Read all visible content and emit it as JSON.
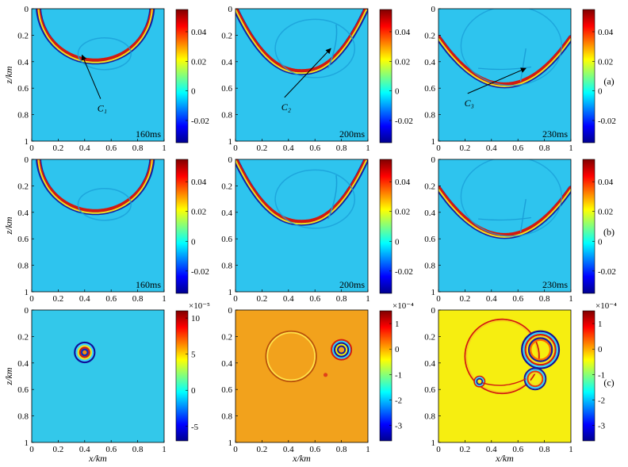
{
  "chart_data": {
    "type": "heatmap",
    "axes": {
      "xlabel": "x/km",
      "ylabel": "z/km",
      "xticks": [
        "0",
        "0.2",
        "0.4",
        "0.6",
        "0.8",
        "1"
      ],
      "zticks": [
        "0",
        "0.2",
        "0.4",
        "0.6",
        "0.8",
        "1"
      ],
      "xlim": [
        0,
        1
      ],
      "zlim": [
        0,
        1
      ]
    },
    "rows": [
      {
        "label": "(a)",
        "panels": [
          {
            "time": "160ms",
            "annotation": "C₁",
            "arrow_tip": [
              0.38,
              0.35
            ],
            "colorbar": {
              "exponent": "",
              "ticks": [
                "0.04",
                "0.02",
                "0",
                "-0.02"
              ],
              "values": [
                0.04,
                0.02,
                0,
                -0.02
              ],
              "range": [
                -0.035,
                0.055
              ]
            }
          },
          {
            "time": "200ms",
            "annotation": "C₂",
            "arrow_tip": [
              0.72,
              0.3
            ],
            "colorbar": {
              "exponent": "",
              "ticks": [
                "0.04",
                "0.02",
                "0",
                "-0.02"
              ],
              "values": [
                0.04,
                0.02,
                0,
                -0.02
              ],
              "range": [
                -0.035,
                0.055
              ]
            }
          },
          {
            "time": "230ms",
            "annotation": "C₃",
            "arrow_tip": [
              0.66,
              0.45
            ],
            "colorbar": {
              "exponent": "",
              "ticks": [
                "0.04",
                "0.02",
                "0",
                "-0.02"
              ],
              "values": [
                0.04,
                0.02,
                0,
                -0.02
              ],
              "range": [
                -0.035,
                0.055
              ]
            }
          }
        ]
      },
      {
        "label": "(b)",
        "panels": [
          {
            "time": "160ms",
            "colorbar": {
              "exponent": "",
              "ticks": [
                "0.04",
                "0.02",
                "0",
                "-0.02"
              ],
              "values": [
                0.04,
                0.02,
                0,
                -0.02
              ],
              "range": [
                -0.035,
                0.055
              ]
            }
          },
          {
            "time": "200ms",
            "colorbar": {
              "exponent": "",
              "ticks": [
                "0.04",
                "0.02",
                "0",
                "-0.02"
              ],
              "values": [
                0.04,
                0.02,
                0,
                -0.02
              ],
              "range": [
                -0.035,
                0.055
              ]
            }
          },
          {
            "time": "230ms",
            "colorbar": {
              "exponent": "",
              "ticks": [
                "0.04",
                "0.02",
                "0",
                "-0.02"
              ],
              "values": [
                0.04,
                0.02,
                0,
                -0.02
              ],
              "range": [
                -0.035,
                0.055
              ]
            }
          }
        ]
      },
      {
        "label": "(c)",
        "panels": [
          {
            "time": "",
            "colorbar": {
              "exponent": "×10⁻⁵",
              "ticks": [
                "10",
                "5",
                "0",
                "-5"
              ],
              "values": [
                10,
                5,
                0,
                -5
              ],
              "range": [
                -7,
                11
              ]
            }
          },
          {
            "time": "",
            "colorbar": {
              "exponent": "×10⁻⁴",
              "ticks": [
                "1",
                "0",
                "-1",
                "-2",
                "-3"
              ],
              "values": [
                1,
                0,
                -1,
                -2,
                -3
              ],
              "range": [
                -3.6,
                1.5
              ]
            }
          },
          {
            "time": "",
            "colorbar": {
              "exponent": "×10⁻⁴",
              "ticks": [
                "1",
                "0",
                "-1",
                "-2",
                "-3"
              ],
              "values": [
                1,
                0,
                -1,
                -2,
                -3
              ],
              "range": [
                -3.6,
                1.5
              ]
            }
          }
        ]
      }
    ],
    "colors": {
      "background_ab": "#2ec4ee",
      "background_c1": "#33c8ea",
      "background_c2": "#f2a21c",
      "background_c3": "#f6ee10",
      "positive": "#d21a10",
      "negative": "#10109a",
      "mid": "#f0e020"
    }
  }
}
